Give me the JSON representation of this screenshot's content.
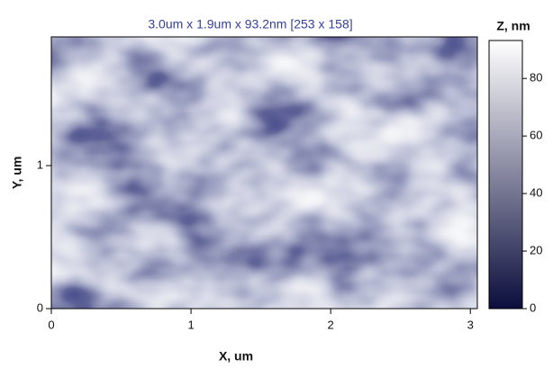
{
  "chart_data": {
    "type": "heatmap",
    "title": "3.0um x 1.9um x 93.2nm [253 x 158]",
    "title_color": "#34409a",
    "x_label": "X, um",
    "y_label": "Y, um",
    "xlim": [
      0,
      3.05
    ],
    "xticks": [
      0,
      1,
      2,
      3
    ],
    "ylim": [
      0,
      1.9
    ],
    "yticks": [
      0,
      1
    ],
    "colormap": [
      "#0b0d3d",
      "#ffffff"
    ],
    "colorbar": {
      "label": "Z, nm",
      "lim": [
        0,
        93.2
      ],
      "ticks": [
        0,
        20,
        40,
        60,
        80
      ]
    }
  }
}
